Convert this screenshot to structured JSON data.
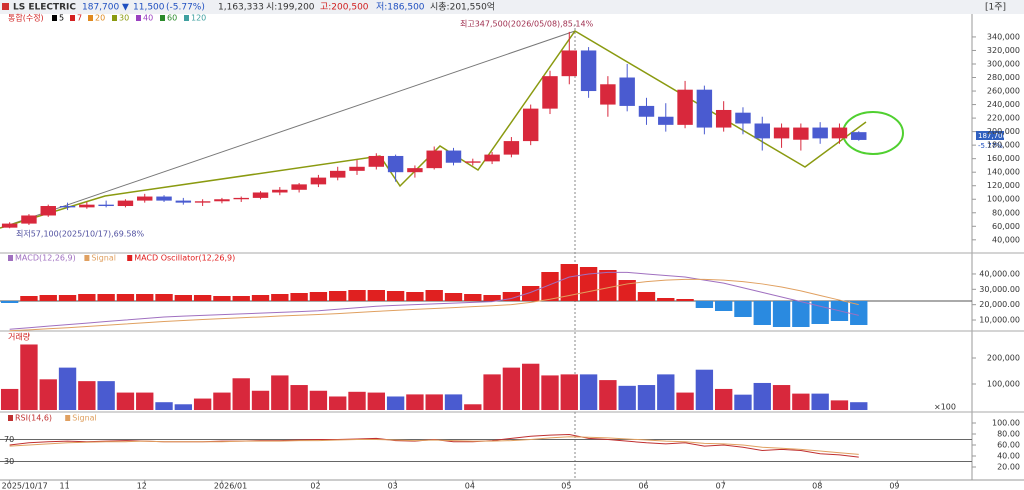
{
  "header": {
    "name": "LS ELECTRIC",
    "price": "187,700",
    "arrow": "▼",
    "change": "11,500",
    "change_pct": "(-5.77%)",
    "volume": "1,163,333",
    "open": "시:199,200",
    "high": "고:200,500",
    "low": "저:186,500",
    "market_cap": "시총:201,550억",
    "period": "[1주]"
  },
  "price_marker": {
    "price": "187,700",
    "change": "-5.77%"
  },
  "chart_data": [
    {
      "type": "candlestick",
      "legend": "통합(수정)",
      "ma_labels": [
        {
          "name": "5",
          "color": "#000000"
        },
        {
          "name": "7",
          "color": "#d42020"
        },
        {
          "name": "20",
          "color": "#e08a20"
        },
        {
          "name": "30",
          "color": "#8a9a10"
        },
        {
          "name": "40",
          "color": "#9a40c0"
        },
        {
          "name": "60",
          "color": "#2a8a2a"
        },
        {
          "name": "120",
          "color": "#40a0a0"
        }
      ],
      "annotations": {
        "high": "최고347,500(2026/05/08),85.14%",
        "low": "최저57,100(2025/10/17),69.58%"
      },
      "categories": [
        "2025/10/17",
        null,
        null,
        "11",
        null,
        null,
        null,
        "12",
        null,
        null,
        null,
        "2026/01",
        null,
        null,
        null,
        null,
        "02",
        null,
        null,
        null,
        "03",
        null,
        null,
        null,
        "04",
        null,
        null,
        null,
        null,
        "05",
        null,
        null,
        null,
        "06",
        null,
        null,
        null,
        "07",
        null,
        null,
        null,
        null,
        "08",
        null,
        null,
        null,
        "09"
      ],
      "open": [
        58000,
        64000,
        76000,
        90000,
        88000,
        92000,
        90000,
        98000,
        104000,
        98000,
        95000,
        97000,
        100000,
        102000,
        110000,
        114000,
        122000,
        132000,
        142000,
        148000,
        164000,
        140000,
        146000,
        172000,
        154000,
        156000,
        166000,
        186000,
        234000,
        282000,
        320000,
        240000,
        280000,
        238000,
        222000,
        210000,
        262000,
        206000,
        228000,
        212000,
        190000,
        188000,
        206000,
        190000,
        199200,
        null,
        null
      ],
      "high": [
        66000,
        78000,
        92000,
        95000,
        96000,
        98000,
        100000,
        108000,
        106000,
        102000,
        100000,
        102000,
        104000,
        112000,
        118000,
        124000,
        136000,
        148000,
        158000,
        168000,
        166000,
        150000,
        178000,
        176000,
        160000,
        170000,
        192000,
        240000,
        290000,
        347500,
        325000,
        282000,
        300000,
        250000,
        242000,
        275000,
        268000,
        245000,
        236000,
        222000,
        212000,
        212000,
        214000,
        212000,
        200500,
        null,
        null
      ],
      "low": [
        57100,
        62000,
        74000,
        84000,
        86000,
        88000,
        88000,
        95000,
        96000,
        92000,
        90000,
        94000,
        96000,
        100000,
        106000,
        110000,
        118000,
        128000,
        136000,
        144000,
        126000,
        132000,
        144000,
        150000,
        150000,
        152000,
        162000,
        180000,
        226000,
        270000,
        250000,
        222000,
        230000,
        210000,
        200000,
        205000,
        196000,
        200000,
        196000,
        172000,
        176000,
        172000,
        182000,
        182000,
        186500,
        null,
        null
      ],
      "close": [
        64000,
        76000,
        90000,
        88000,
        92000,
        90000,
        98000,
        104000,
        98000,
        95000,
        97000,
        100000,
        102000,
        110000,
        114000,
        122000,
        132000,
        142000,
        148000,
        164000,
        140000,
        146000,
        172000,
        154000,
        156000,
        166000,
        186000,
        234000,
        282000,
        320000,
        260000,
        270000,
        238000,
        222000,
        210000,
        262000,
        206000,
        232000,
        212000,
        190000,
        206000,
        206000,
        190000,
        206000,
        187700,
        null,
        null
      ],
      "up_color": "#d8283c",
      "down_color": "#4a5bd0",
      "ylim": [
        22000,
        368000
      ],
      "yticks": [
        {
          "value": 340000,
          "label": "340,000"
        },
        {
          "value": 320000,
          "label": "320,000"
        },
        {
          "value": 300000,
          "label": "300,000"
        },
        {
          "value": 280000,
          "label": "280,000"
        },
        {
          "value": 260000,
          "label": "260,000"
        },
        {
          "value": 240000,
          "label": "240,000"
        },
        {
          "value": 220000,
          "label": "220,000"
        },
        {
          "value": 200000,
          "label": "200,000"
        },
        {
          "value": 180000,
          "label": "180,000"
        },
        {
          "value": 160000,
          "label": "160,000"
        },
        {
          "value": 140000,
          "label": "140,000"
        },
        {
          "value": 120000,
          "label": "120,000"
        },
        {
          "value": 100000,
          "label": "100,000"
        },
        {
          "value": 80000,
          "label": "80,000"
        },
        {
          "value": 60000,
          "label": "60,000"
        },
        {
          "value": 40000,
          "label": "40,000"
        }
      ]
    },
    {
      "type": "macd",
      "series": [
        {
          "name": "MACD(12,26,9)",
          "color": "#a070c0",
          "values": [
            4000,
            5000,
            6000,
            7000,
            8000,
            9000,
            10000,
            11000,
            12000,
            12500,
            13000,
            13500,
            14000,
            14500,
            15000,
            15500,
            16000,
            17000,
            18000,
            19000,
            19500,
            20000,
            20500,
            21000,
            21500,
            22000,
            24000,
            28000,
            33000,
            38000,
            40000,
            41000,
            41000,
            40000,
            39000,
            38000,
            36000,
            34000,
            31000,
            28000,
            25000,
            22000,
            19000,
            16000,
            13000,
            null,
            null
          ]
        },
        {
          "name": "Signal",
          "color": "#e0a060",
          "values": [
            3000,
            3600,
            4300,
            5000,
            5800,
            6600,
            7400,
            8200,
            9000,
            9700,
            10300,
            10900,
            11500,
            12000,
            12600,
            13100,
            13600,
            14200,
            14900,
            15600,
            16300,
            16900,
            17500,
            18100,
            18700,
            19300,
            20000,
            21500,
            23500,
            26000,
            28500,
            31000,
            33500,
            35000,
            36000,
            36500,
            36500,
            36000,
            35000,
            33500,
            31500,
            29000,
            26000,
            23000,
            20000,
            null,
            null
          ]
        },
        {
          "name": "MACD Oscillator(12,26,9)",
          "axis": "y2",
          "up_color": "#e02020",
          "down_color": "#2a8ae0",
          "values": [
            -200,
            500,
            600,
            600,
            700,
            700,
            700,
            700,
            700,
            600,
            600,
            500,
            500,
            600,
            700,
            800,
            900,
            1000,
            1100,
            1100,
            1000,
            900,
            1100,
            800,
            700,
            600,
            900,
            1500,
            2900,
            3700,
            3400,
            3100,
            2100,
            900,
            300,
            200,
            -700,
            -1000,
            -1600,
            -2400,
            -2600,
            -2600,
            -2300,
            -2000,
            -2400,
            null,
            null
          ]
        }
      ],
      "ylim": [
        3500,
        53000
      ],
      "yticks": [
        {
          "value": 40000,
          "label": "40,000.00"
        },
        {
          "value": 30000,
          "label": "30,000.00"
        },
        {
          "value": 20000,
          "label": "20,000.00"
        },
        {
          "value": 10000,
          "label": "10,000.00"
        }
      ],
      "y2lim": [
        -2900,
        4700
      ]
    },
    {
      "type": "bar",
      "title": "거래량",
      "unit_label": "×100",
      "values": [
        81000,
        252000,
        118000,
        163000,
        111000,
        111000,
        67000,
        67000,
        30000,
        22000,
        44000,
        67000,
        122000,
        74000,
        133000,
        96000,
        74000,
        52000,
        70000,
        67000,
        52000,
        60000,
        60000,
        60000,
        22000,
        137000,
        163000,
        178000,
        133000,
        137000,
        137000,
        115000,
        93000,
        96000,
        137000,
        67000,
        155000,
        81000,
        59000,
        104000,
        96000,
        63000,
        63000,
        37000,
        30000,
        null,
        null
      ],
      "ylim": [
        0,
        300000
      ],
      "yticks": [
        {
          "value": 200000,
          "label": "200,000"
        },
        {
          "value": 100000,
          "label": "100,000"
        }
      ]
    },
    {
      "type": "line",
      "series": [
        {
          "name": "RSI(14,6)",
          "color": "#c03030",
          "values": [
            60,
            64,
            66,
            67,
            66,
            67,
            68,
            67,
            66,
            66,
            66,
            67,
            67,
            68,
            68,
            69,
            70,
            70,
            71,
            72,
            68,
            67,
            70,
            66,
            66,
            68,
            72,
            76,
            78,
            79,
            72,
            70,
            67,
            64,
            62,
            64,
            58,
            60,
            56,
            50,
            52,
            50,
            44,
            42,
            38,
            null,
            null
          ]
        },
        {
          "name": "Signal",
          "color": "#e0a060",
          "values": [
            58,
            60,
            62,
            64,
            65,
            66,
            66,
            67,
            66,
            66,
            66,
            66,
            67,
            67,
            67,
            68,
            68,
            69,
            70,
            70,
            69,
            68,
            69,
            68,
            67,
            67,
            68,
            70,
            73,
            75,
            74,
            73,
            71,
            69,
            67,
            66,
            63,
            62,
            60,
            56,
            54,
            52,
            49,
            46,
            43,
            null,
            null
          ]
        }
      ],
      "levels": [
        70,
        30
      ],
      "ylim": [
        0,
        100
      ],
      "yticks": [
        {
          "value": 100,
          "label": "100.00"
        },
        {
          "value": 80,
          "label": "80.00"
        },
        {
          "value": 60,
          "label": "60.00"
        },
        {
          "value": 40,
          "label": "40.00"
        },
        {
          "value": 20,
          "label": "20.00"
        }
      ]
    }
  ]
}
